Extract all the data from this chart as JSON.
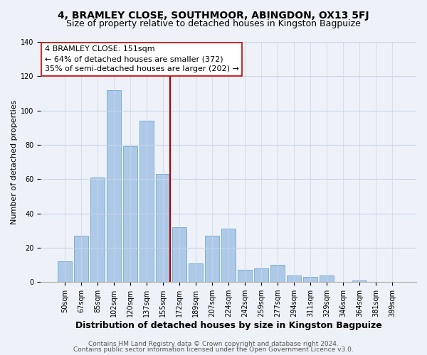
{
  "title": "4, BRAMLEY CLOSE, SOUTHMOOR, ABINGDON, OX13 5FJ",
  "subtitle": "Size of property relative to detached houses in Kingston Bagpuize",
  "xlabel": "Distribution of detached houses by size in Kingston Bagpuize",
  "ylabel": "Number of detached properties",
  "footer_line1": "Contains HM Land Registry data © Crown copyright and database right 2024.",
  "footer_line2": "Contains public sector information licensed under the Open Government Licence v3.0.",
  "bar_labels": [
    "50sqm",
    "67sqm",
    "85sqm",
    "102sqm",
    "120sqm",
    "137sqm",
    "155sqm",
    "172sqm",
    "189sqm",
    "207sqm",
    "224sqm",
    "242sqm",
    "259sqm",
    "277sqm",
    "294sqm",
    "311sqm",
    "329sqm",
    "346sqm",
    "364sqm",
    "381sqm",
    "399sqm"
  ],
  "bar_values": [
    12,
    27,
    61,
    112,
    79,
    94,
    63,
    32,
    11,
    27,
    31,
    7,
    8,
    10,
    4,
    3,
    4,
    0,
    1,
    0,
    0
  ],
  "bar_color": "#aec9e8",
  "bar_edge_color": "#7aafd4",
  "vline_color": "#aa0000",
  "annotation_title": "4 BRAMLEY CLOSE: 151sqm",
  "annotation_line1": "← 64% of detached houses are smaller (372)",
  "annotation_line2": "35% of semi-detached houses are larger (202) →",
  "annotation_box_edge": "#cc0000",
  "ylim": [
    0,
    140
  ],
  "yticks": [
    0,
    20,
    40,
    60,
    80,
    100,
    120,
    140
  ],
  "background_color": "#eef2f8",
  "grid_color": "#c8d4e8",
  "title_fontsize": 10,
  "subtitle_fontsize": 9,
  "xlabel_fontsize": 9,
  "ylabel_fontsize": 8,
  "annotation_fontsize": 8,
  "tick_fontsize": 7,
  "footer_fontsize": 6.5
}
